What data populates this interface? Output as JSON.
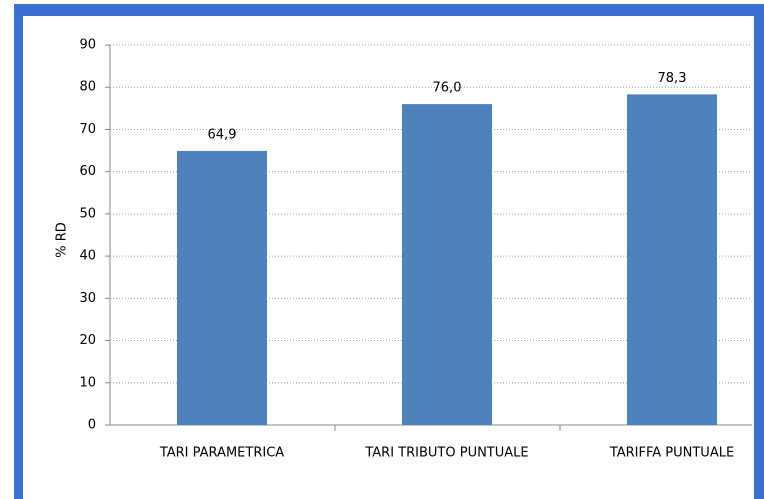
{
  "chart_data": {
    "type": "bar",
    "ylabel": "% RD",
    "categories": [
      "TARI PARAMETRICA",
      "TARI TRIBUTO PUNTUALE",
      "TARIFFA PUNTUALE"
    ],
    "values": [
      64.9,
      76.0,
      78.3
    ],
    "value_labels": [
      "64,9",
      "76,0",
      "78,3"
    ],
    "color": "#4f81bd",
    "ylim": [
      0,
      90
    ],
    "yticks": [
      0,
      10,
      20,
      30,
      40,
      50,
      60,
      70,
      80,
      90
    ],
    "grid": true
  }
}
